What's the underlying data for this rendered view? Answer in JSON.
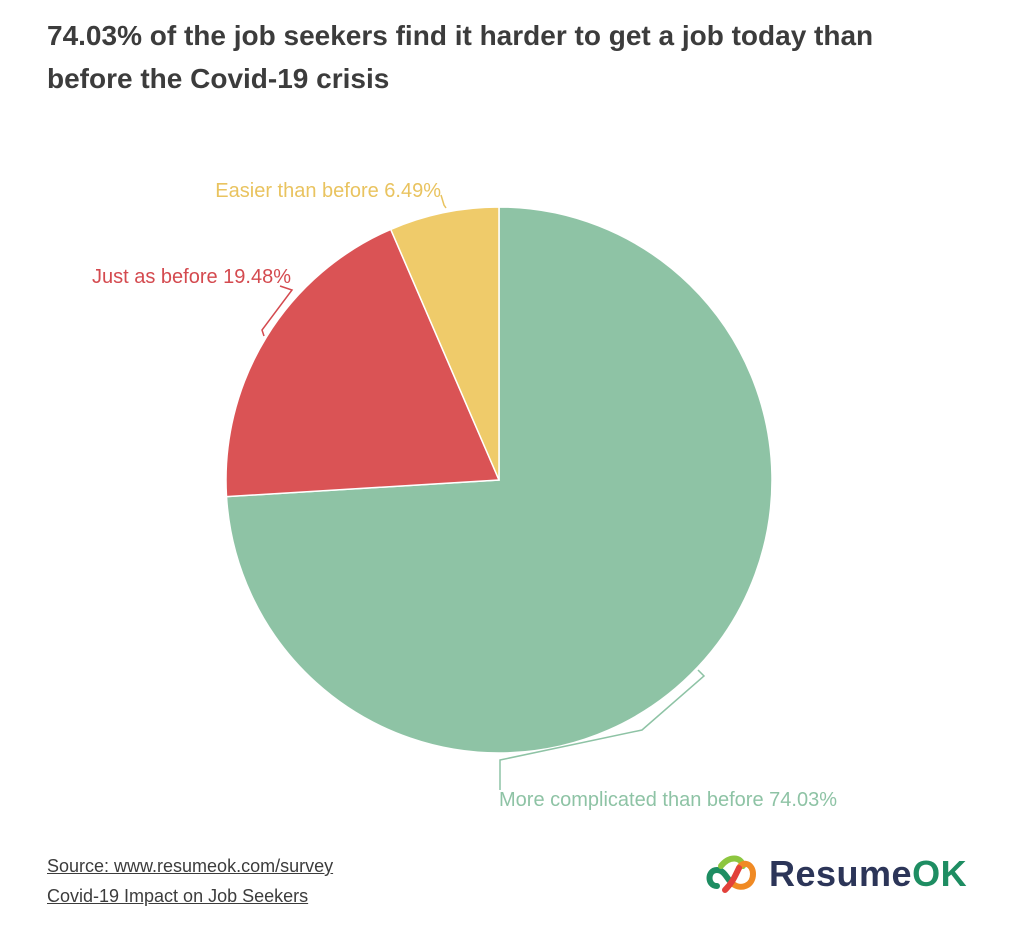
{
  "header": {
    "title": "74.03% of the job seekers find it harder to get a job today than before the Covid-19 crisis"
  },
  "chart_data": {
    "type": "pie",
    "title": "74.03% of the job seekers find it harder to get a job today than before the Covid-19 crisis",
    "slices": [
      {
        "label": "More complicated than before",
        "value": 74.03,
        "value_label": "74.03%",
        "color": "#8ec3a5",
        "label_color": "#8ec3a5"
      },
      {
        "label": "Just as before",
        "value": 19.48,
        "value_label": "19.48%",
        "color": "#da5355",
        "label_color": "#d44a4f"
      },
      {
        "label": "Easier than before",
        "value": 6.49,
        "value_label": "6.49%",
        "color": "#efcb6a",
        "label_color": "#e9c35f"
      }
    ],
    "start_angle_deg": 0,
    "direction": "clockwise"
  },
  "footer": {
    "source": "Source: www.resumeok.com/survey",
    "subtitle": "Covid-19 Impact on Job Seekers"
  },
  "brand": {
    "name_part1": "Resume",
    "name_part2": "OK",
    "colors": {
      "navy": "#2c3558",
      "green": "#1e8d62",
      "orange": "#f08a24",
      "lime": "#8dc63f",
      "red": "#e2413b"
    },
    "icon": "paperclip-logo-icon"
  }
}
